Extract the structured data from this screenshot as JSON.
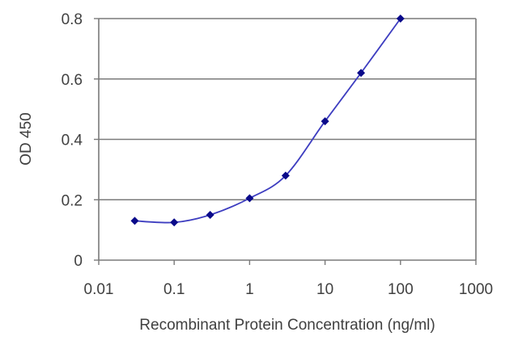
{
  "chart_data": {
    "type": "line",
    "title": "",
    "xlabel": "Recombinant Protein Concentration (ng/ml)",
    "ylabel": "OD 450",
    "x_scale": "log",
    "xlim": [
      0.01,
      1000
    ],
    "ylim": [
      0,
      0.8
    ],
    "x_ticks": [
      0.01,
      0.1,
      1,
      10,
      100,
      1000
    ],
    "x_tick_labels": [
      "0.01",
      "0.1",
      "1",
      "10",
      "100",
      "1000"
    ],
    "y_ticks": [
      0,
      0.2,
      0.4,
      0.6,
      0.8
    ],
    "y_tick_labels": [
      "0",
      "0.2",
      "0.4",
      "0.6",
      "0.8"
    ],
    "grid": "horizontal",
    "legend": "none",
    "series": [
      {
        "x": [
          0.03,
          0.1,
          0.3,
          1,
          3,
          10,
          30,
          100
        ],
        "y": [
          0.13,
          0.125,
          0.15,
          0.205,
          0.28,
          0.46,
          0.62,
          0.8
        ]
      }
    ],
    "colors": {
      "line": "#3d3dc0",
      "marker": "#0a0a8a",
      "grid": "#7a7a7a",
      "axis": "#7a7a7a"
    }
  }
}
